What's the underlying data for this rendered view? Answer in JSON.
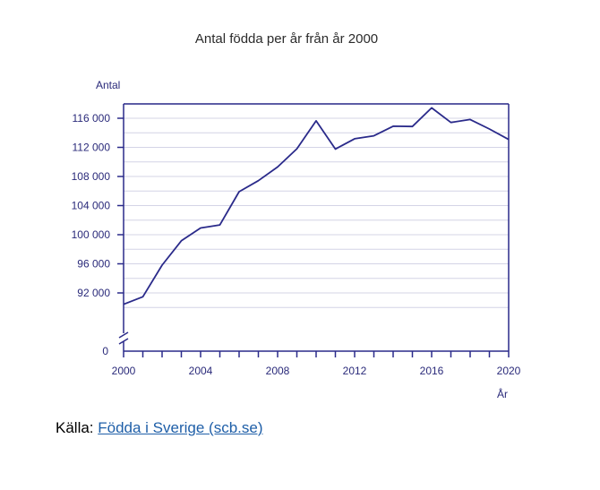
{
  "chart_data": {
    "type": "line",
    "title": "Antal födda per år från år 2000",
    "ylabel": "Antal",
    "xlabel": "År",
    "axis_break": true,
    "grid": true,
    "colors": {
      "line": "#2a2a8a",
      "axis": "#2a2a8a",
      "grid": "#d4d4e6",
      "text": "#2a2a7a"
    },
    "xlim": [
      2000,
      2020
    ],
    "ylim": [
      88000,
      118000
    ],
    "x_ticks": [
      {
        "value": 2000,
        "label": "2000"
      },
      {
        "value": 2004,
        "label": "2004"
      },
      {
        "value": 2008,
        "label": "2008"
      },
      {
        "value": 2012,
        "label": "2012"
      },
      {
        "value": 2016,
        "label": "2016"
      },
      {
        "value": 2020,
        "label": "2020"
      }
    ],
    "y_ticks": [
      {
        "value": 92000,
        "label": "92 000"
      },
      {
        "value": 96000,
        "label": "96 000"
      },
      {
        "value": 100000,
        "label": "100 000"
      },
      {
        "value": 104000,
        "label": "104 000"
      },
      {
        "value": 108000,
        "label": "108 000"
      },
      {
        "value": 112000,
        "label": "112 000"
      },
      {
        "value": 116000,
        "label": "116 000"
      }
    ],
    "zero_label": "0",
    "series": [
      {
        "x": [
          2000,
          2001,
          2002,
          2003,
          2004,
          2005,
          2006,
          2007,
          2008,
          2009,
          2010,
          2011,
          2012,
          2013,
          2014,
          2015,
          2016,
          2017,
          2018,
          2019,
          2020
        ],
        "values": [
          90441,
          91466,
          95815,
          99157,
          100928,
          101346,
          105913,
          107421,
          109301,
          111801,
          115641,
          111770,
          113177,
          113593,
          114907,
          114870,
          117425,
          115416,
          115832,
          114523,
          113077
        ]
      }
    ]
  },
  "source": {
    "prefix": "Källa: ",
    "link_text": "Födda i Sverige (scb.se)"
  }
}
